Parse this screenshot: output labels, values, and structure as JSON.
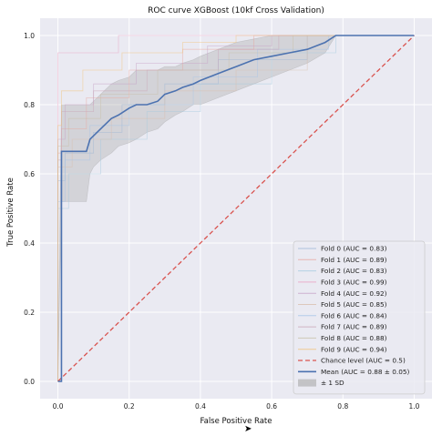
{
  "chart_data": {
    "type": "line",
    "title": "ROC curve XGBoost (10kf Cross Validation)",
    "xlabel": "False Positive Rate",
    "ylabel": "True Positive Rate",
    "xlim": [
      -0.05,
      1.05
    ],
    "ylim": [
      -0.05,
      1.05
    ],
    "xticks": [
      0.0,
      0.2,
      0.4,
      0.6,
      0.8,
      1.0
    ],
    "yticks": [
      0.0,
      0.2,
      0.4,
      0.6,
      0.8,
      1.0
    ],
    "tick_labels": [
      "0.0",
      "0.2",
      "0.4",
      "0.6",
      "0.8",
      "1.0"
    ],
    "grid": true,
    "legend_position": "lower-right",
    "colors": {
      "background": "#eaeaf2",
      "grid": "#ffffff",
      "fold": "#9db8c9",
      "mean": "#4c72b0",
      "chance": "#d9534f",
      "band": "#a8a8a8"
    },
    "series": [
      {
        "name": "Fold 0 (AUC = 0.83)",
        "kind": "fold",
        "color": "#9fb7d6",
        "x": [
          0,
          0,
          0.02,
          0.02,
          0.1,
          0.1,
          0.18,
          0.18,
          0.3,
          0.3,
          0.45,
          0.45,
          0.7,
          0.7,
          1.0
        ],
        "y": [
          0,
          0.58,
          0.58,
          0.66,
          0.66,
          0.72,
          0.72,
          0.8,
          0.8,
          0.86,
          0.86,
          0.93,
          0.93,
          1.0,
          1.0
        ]
      },
      {
        "name": "Fold 1 (AUC = 0.89)",
        "kind": "fold",
        "color": "#e7a7a0",
        "x": [
          0,
          0,
          0.01,
          0.01,
          0.08,
          0.08,
          0.2,
          0.2,
          0.35,
          0.35,
          0.55,
          0.55,
          1.0
        ],
        "y": [
          0,
          0.66,
          0.66,
          0.73,
          0.73,
          0.82,
          0.82,
          0.9,
          0.9,
          0.96,
          0.96,
          1.0,
          1.0
        ]
      },
      {
        "name": "Fold 2 (AUC = 0.83)",
        "kind": "fold",
        "color": "#a6cbe0",
        "x": [
          0,
          0,
          0.03,
          0.03,
          0.12,
          0.12,
          0.25,
          0.25,
          0.4,
          0.4,
          0.6,
          0.6,
          0.78,
          0.78,
          1.0
        ],
        "y": [
          0,
          0.5,
          0.5,
          0.6,
          0.6,
          0.7,
          0.7,
          0.78,
          0.78,
          0.86,
          0.86,
          0.95,
          0.95,
          1.0,
          1.0
        ]
      },
      {
        "name": "Fold 3 (AUC = 0.99)",
        "kind": "fold",
        "color": "#e8a0c0",
        "x": [
          0,
          0,
          0.01,
          0.01,
          0.17,
          0.17,
          1.0
        ],
        "y": [
          0,
          0.95,
          0.95,
          0.95,
          0.95,
          1.0,
          1.0
        ]
      },
      {
        "name": "Fold 4 (AUC = 0.92)",
        "kind": "fold",
        "color": "#c7a3c7",
        "x": [
          0,
          0,
          0.02,
          0.02,
          0.1,
          0.1,
          0.22,
          0.22,
          0.42,
          0.42,
          0.6,
          0.6,
          1.0
        ],
        "y": [
          0,
          0.7,
          0.7,
          0.8,
          0.8,
          0.86,
          0.86,
          0.92,
          0.92,
          0.97,
          0.97,
          1.0,
          1.0
        ]
      },
      {
        "name": "Fold 5 (AUC = 0.85)",
        "kind": "fold",
        "color": "#d9bfae",
        "x": [
          0,
          0,
          0.04,
          0.04,
          0.15,
          0.15,
          0.3,
          0.3,
          0.5,
          0.5,
          0.7,
          0.7,
          1.0
        ],
        "y": [
          0,
          0.62,
          0.62,
          0.7,
          0.7,
          0.76,
          0.76,
          0.84,
          0.84,
          0.9,
          0.9,
          1.0,
          1.0
        ]
      },
      {
        "name": "Fold 6 (AUC = 0.84)",
        "kind": "fold",
        "color": "#a7c5e8",
        "x": [
          0,
          0,
          0.02,
          0.02,
          0.09,
          0.09,
          0.2,
          0.2,
          0.38,
          0.38,
          0.56,
          0.56,
          0.76,
          0.76,
          1.0
        ],
        "y": [
          0,
          0.52,
          0.52,
          0.64,
          0.64,
          0.74,
          0.74,
          0.8,
          0.8,
          0.88,
          0.88,
          0.96,
          0.96,
          1.0,
          1.0
        ]
      },
      {
        "name": "Fold 7 (AUC = 0.89)",
        "kind": "fold",
        "color": "#cba6b8",
        "x": [
          0,
          0,
          0.01,
          0.01,
          0.1,
          0.1,
          0.25,
          0.25,
          0.45,
          0.45,
          0.62,
          0.62,
          1.0
        ],
        "y": [
          0,
          0.64,
          0.64,
          0.78,
          0.78,
          0.84,
          0.84,
          0.9,
          0.9,
          0.96,
          0.96,
          1.0,
          1.0
        ]
      },
      {
        "name": "Fold 8 (AUC = 0.88)",
        "kind": "fold",
        "color": "#c9c0a8",
        "x": [
          0,
          0,
          0.03,
          0.03,
          0.12,
          0.12,
          0.28,
          0.28,
          0.48,
          0.48,
          0.66,
          0.66,
          1.0
        ],
        "y": [
          0,
          0.68,
          0.68,
          0.76,
          0.76,
          0.83,
          0.83,
          0.9,
          0.9,
          0.95,
          0.95,
          1.0,
          1.0
        ]
      },
      {
        "name": "Fold 9 (AUC = 0.94)",
        "kind": "fold",
        "color": "#f0c27a",
        "x": [
          0,
          0,
          0.01,
          0.01,
          0.07,
          0.07,
          0.18,
          0.18,
          0.35,
          0.35,
          0.5,
          0.5,
          1.0
        ],
        "y": [
          0,
          0.74,
          0.74,
          0.84,
          0.84,
          0.9,
          0.9,
          0.95,
          0.95,
          0.98,
          0.98,
          1.0,
          1.0
        ]
      },
      {
        "name": "Chance level (AUC = 0.5)",
        "kind": "chance",
        "color": "#d9534f",
        "x": [
          0,
          1
        ],
        "y": [
          0,
          1
        ]
      },
      {
        "name": "Mean (AUC = 0.88 ± 0.05)",
        "kind": "mean",
        "color": "#4c72b0",
        "x": [
          0,
          0.01,
          0.01,
          0.03,
          0.05,
          0.08,
          0.09,
          0.1,
          0.12,
          0.15,
          0.17,
          0.2,
          0.22,
          0.25,
          0.28,
          0.3,
          0.33,
          0.35,
          0.38,
          0.4,
          0.45,
          0.5,
          0.55,
          0.6,
          0.65,
          0.7,
          0.75,
          0.78,
          0.85,
          0.9,
          0.95,
          1.0
        ],
        "y": [
          0,
          0.0,
          0.665,
          0.665,
          0.665,
          0.665,
          0.7,
          0.71,
          0.73,
          0.76,
          0.77,
          0.79,
          0.8,
          0.8,
          0.81,
          0.83,
          0.84,
          0.85,
          0.86,
          0.87,
          0.89,
          0.91,
          0.93,
          0.94,
          0.95,
          0.96,
          0.98,
          1.0,
          1.0,
          1.0,
          1.0,
          1.0
        ]
      }
    ],
    "band": {
      "name": "± 1 SD",
      "x": [
        0,
        0.01,
        0.03,
        0.05,
        0.08,
        0.09,
        0.1,
        0.12,
        0.15,
        0.17,
        0.2,
        0.22,
        0.25,
        0.28,
        0.3,
        0.33,
        0.35,
        0.38,
        0.4,
        0.45,
        0.5,
        0.55,
        0.6,
        0.65,
        0.7,
        0.75,
        0.78,
        0.85,
        0.9,
        0.95,
        1.0
      ],
      "lower": [
        0,
        0.52,
        0.52,
        0.52,
        0.52,
        0.6,
        0.62,
        0.64,
        0.66,
        0.68,
        0.69,
        0.7,
        0.72,
        0.73,
        0.75,
        0.77,
        0.78,
        0.8,
        0.8,
        0.82,
        0.84,
        0.86,
        0.88,
        0.9,
        0.92,
        0.95,
        1.0,
        1.0,
        1.0,
        1.0,
        1.0
      ],
      "upper": [
        0,
        0.8,
        0.8,
        0.8,
        0.8,
        0.8,
        0.81,
        0.83,
        0.86,
        0.87,
        0.88,
        0.9,
        0.9,
        0.9,
        0.91,
        0.91,
        0.92,
        0.93,
        0.94,
        0.96,
        0.98,
        0.99,
        1.0,
        1.0,
        1.0,
        1.0,
        1.0,
        1.0,
        1.0,
        1.0,
        1.0
      ]
    }
  }
}
